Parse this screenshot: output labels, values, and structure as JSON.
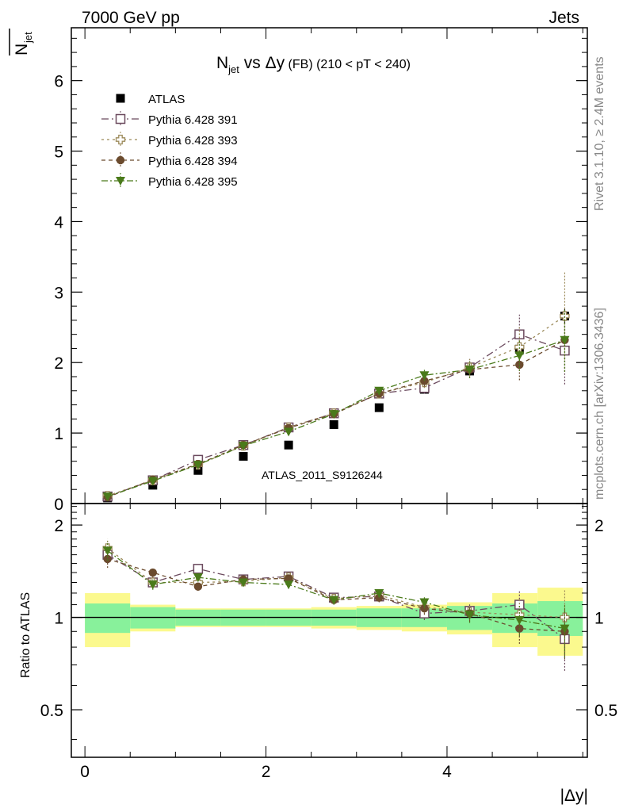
{
  "header": {
    "left": "7000 GeV pp",
    "right": "Jets"
  },
  "side_text": {
    "rivet": "Rivet 3.1.10, ≥ 2.4M events",
    "mcplots": "mcplots.cern.ch [arXiv:1306.3436]"
  },
  "colors": {
    "atlas": "#000000",
    "p391": "#6b4a5e",
    "p393": "#9c8a5a",
    "p394": "#6b4b2e",
    "p395": "#4a7a1a",
    "band_inner": "#88f19b",
    "band_outer": "#fbf98e"
  },
  "chart_data": [
    {
      "type": "scatter",
      "panel": "main",
      "title_main": "N",
      "title_sub": "jet",
      "title_rest": " vs Δy",
      "title_small": " (FB)",
      "title_range": " (210 < pT < 240)",
      "ylabel_main": "N",
      "ylabel_sub": "jet",
      "watermark": "ATLAS_2011_S9126244",
      "xlim": [
        -0.15,
        5.55
      ],
      "ylim": [
        0,
        6.75
      ],
      "yticks": [
        "0",
        "1",
        "2",
        "3",
        "4",
        "5",
        "6"
      ],
      "x": [
        0.25,
        0.75,
        1.25,
        1.75,
        2.25,
        2.75,
        3.25,
        3.75,
        4.25,
        4.8,
        5.3
      ],
      "series": [
        {
          "name": "ATLAS",
          "marker": "square-filled",
          "values": [
            0.08,
            0.26,
            0.47,
            0.67,
            0.83,
            1.12,
            1.36,
            1.62,
            1.88,
            2.19,
            2.66
          ],
          "errors": [
            0.01,
            0.02,
            0.03,
            0.03,
            0.04,
            0.05,
            0.05,
            0.06,
            0.07,
            0.08,
            0.1
          ]
        },
        {
          "name": "Pythia 6.428 391",
          "marker": "square-open",
          "dash": "9,4,2,4",
          "values": [
            0.1,
            0.33,
            0.62,
            0.83,
            1.08,
            1.28,
            1.56,
            1.64,
            1.93,
            2.4,
            2.17
          ],
          "errors": [
            0.01,
            0.02,
            0.03,
            0.03,
            0.04,
            0.05,
            0.06,
            0.08,
            0.12,
            0.28,
            0.48
          ]
        },
        {
          "name": "Pythia 6.428 393",
          "marker": "cross-open",
          "dash": "3,4",
          "values": [
            0.11,
            0.33,
            0.55,
            0.82,
            1.08,
            1.28,
            1.56,
            1.72,
            1.93,
            2.22,
            2.66
          ],
          "errors": [
            0.01,
            0.02,
            0.03,
            0.03,
            0.04,
            0.05,
            0.06,
            0.08,
            0.12,
            0.28,
            0.62
          ]
        },
        {
          "name": "Pythia 6.428 394",
          "marker": "circle-filled",
          "dash": "5,4",
          "values": [
            0.09,
            0.34,
            0.56,
            0.83,
            1.07,
            1.27,
            1.56,
            1.74,
            1.9,
            1.97,
            2.32
          ],
          "errors": [
            0.01,
            0.02,
            0.03,
            0.03,
            0.04,
            0.05,
            0.06,
            0.08,
            0.12,
            0.22,
            0.45
          ]
        },
        {
          "name": "Pythia 6.428 395",
          "marker": "triangle-down-filled",
          "dash": "8,3,2,3",
          "values": [
            0.1,
            0.32,
            0.55,
            0.82,
            1.02,
            1.27,
            1.6,
            1.82,
            1.9,
            2.1,
            2.32
          ],
          "errors": [
            0.01,
            0.02,
            0.03,
            0.03,
            0.04,
            0.05,
            0.06,
            0.08,
            0.12,
            0.22,
            0.45
          ]
        }
      ],
      "legend_position": "top-left"
    },
    {
      "type": "scatter",
      "panel": "ratio",
      "ylabel": "Ratio to ATLAS",
      "xlabel": "|Δy|",
      "xlim": [
        -0.15,
        5.55
      ],
      "ylim": [
        0.35,
        2.35
      ],
      "yscale": "log",
      "yticks": [
        "0.5",
        "1",
        "2"
      ],
      "xticks": [
        "0",
        "2",
        "4"
      ],
      "bins": [
        [
          0,
          0.5
        ],
        [
          0.5,
          1.0
        ],
        [
          1.0,
          1.5
        ],
        [
          1.5,
          2.0
        ],
        [
          2.0,
          2.5
        ],
        [
          2.5,
          3.0
        ],
        [
          3.0,
          3.5
        ],
        [
          3.5,
          4.0
        ],
        [
          4.0,
          4.5
        ],
        [
          4.5,
          5.0
        ],
        [
          5.0,
          5.5
        ]
      ],
      "band_inner": [
        0.11,
        0.08,
        0.06,
        0.06,
        0.06,
        0.06,
        0.07,
        0.07,
        0.09,
        0.11,
        0.13
      ],
      "band_outer": [
        0.2,
        0.1,
        0.07,
        0.07,
        0.07,
        0.08,
        0.09,
        0.1,
        0.12,
        0.2,
        0.25
      ],
      "x": [
        0.25,
        0.75,
        1.25,
        1.75,
        2.25,
        2.75,
        3.25,
        3.75,
        4.25,
        4.8,
        5.3
      ],
      "series": [
        {
          "name": "Pythia 6.428 391",
          "values": [
            1.6,
            1.3,
            1.44,
            1.33,
            1.36,
            1.16,
            1.17,
            1.03,
            1.05,
            1.1,
            0.85
          ],
          "errors": [
            0.1,
            0.05,
            0.04,
            0.03,
            0.04,
            0.04,
            0.04,
            0.05,
            0.06,
            0.13,
            0.18
          ]
        },
        {
          "name": "Pythia 6.428 393",
          "values": [
            1.68,
            1.3,
            1.3,
            1.31,
            1.35,
            1.15,
            1.18,
            1.08,
            1.04,
            1.02,
            1.0
          ],
          "errors": [
            0.12,
            0.05,
            0.04,
            0.03,
            0.04,
            0.04,
            0.04,
            0.05,
            0.06,
            0.13,
            0.23
          ]
        },
        {
          "name": "Pythia 6.428 394",
          "values": [
            1.55,
            1.4,
            1.26,
            1.33,
            1.34,
            1.14,
            1.16,
            1.07,
            1.03,
            0.92,
            0.9
          ],
          "errors": [
            0.1,
            0.05,
            0.04,
            0.03,
            0.04,
            0.04,
            0.04,
            0.05,
            0.06,
            0.1,
            0.17
          ]
        },
        {
          "name": "Pythia 6.428 395",
          "values": [
            1.65,
            1.28,
            1.35,
            1.3,
            1.28,
            1.14,
            1.2,
            1.12,
            1.02,
            0.98,
            0.92
          ],
          "errors": [
            0.12,
            0.05,
            0.04,
            0.03,
            0.04,
            0.04,
            0.04,
            0.05,
            0.06,
            0.11,
            0.18
          ]
        }
      ]
    }
  ]
}
